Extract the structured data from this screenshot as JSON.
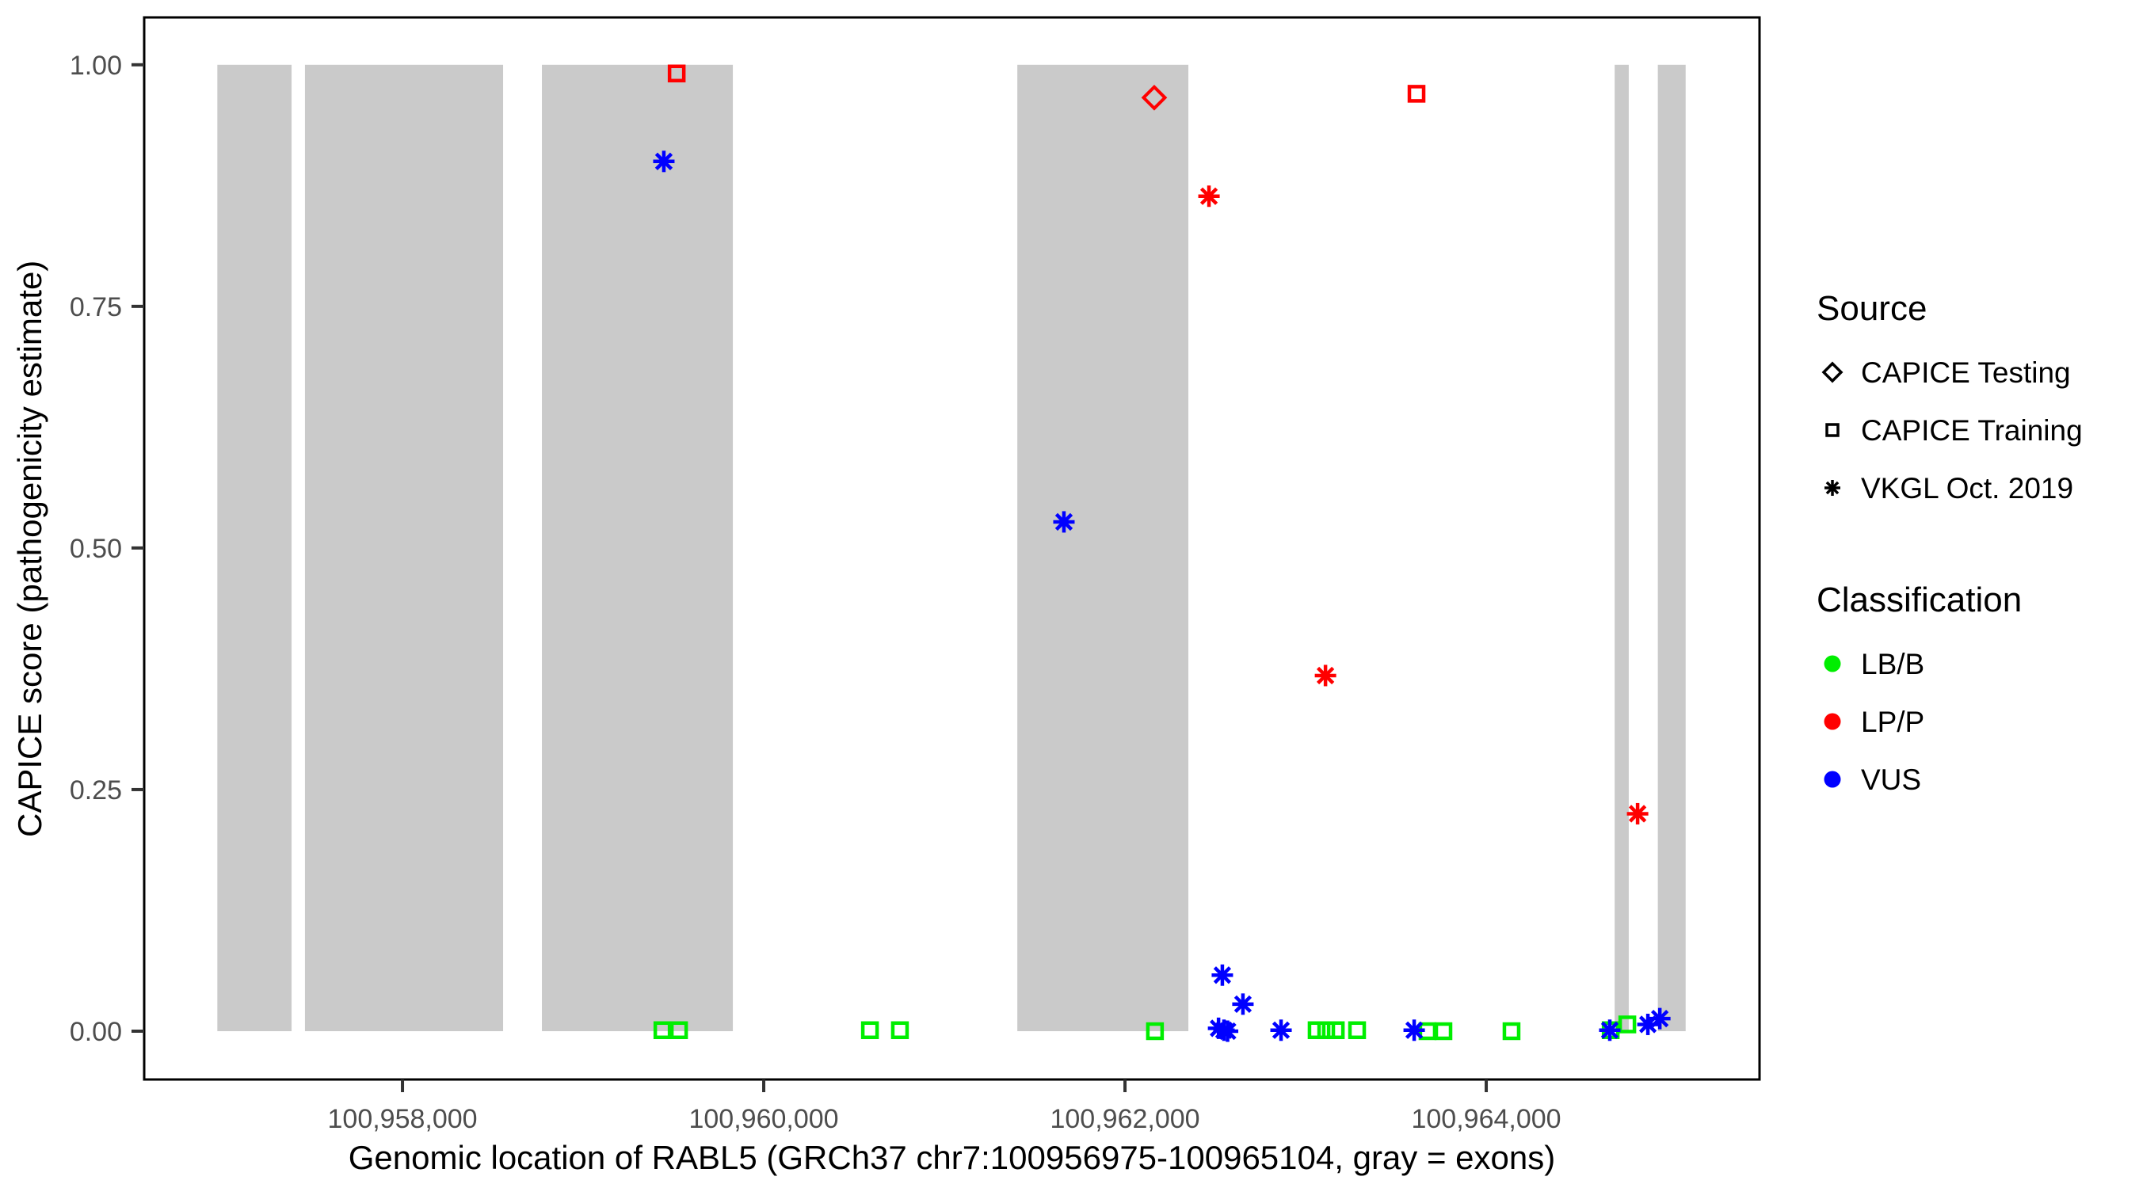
{
  "chart_data": {
    "type": "scatter",
    "title": "",
    "xlabel": "Genomic location of RABL5 (GRCh37 chr7:100956975-100965104, gray = exons)",
    "ylabel": "CAPICE score (pathogenicity estimate)",
    "x_domain": [
      100956570,
      100965513
    ],
    "y_domain": [
      -0.05,
      1.049
    ],
    "grid": false,
    "x_ticks": [
      {
        "value": 100958000,
        "label": "100,958,000"
      },
      {
        "value": 100960000,
        "label": "100,960,000"
      },
      {
        "value": 100962000,
        "label": "100,962,000"
      },
      {
        "value": 100964000,
        "label": "100,964,000"
      }
    ],
    "y_ticks": [
      {
        "value": 0.0,
        "label": "0.00"
      },
      {
        "value": 0.25,
        "label": "0.25"
      },
      {
        "value": 0.5,
        "label": "0.50"
      },
      {
        "value": 0.75,
        "label": "0.75"
      },
      {
        "value": 1.0,
        "label": "1.00"
      }
    ],
    "exons_note": "gray rectangles span CAPICE score 0 to 1",
    "exons": [
      [
        100956975,
        100957386
      ],
      [
        100957460,
        100958557
      ],
      [
        100958772,
        100959829
      ],
      [
        100961404,
        100962351
      ],
      [
        100964711,
        100964789
      ],
      [
        100964950,
        100965104
      ]
    ],
    "points": [
      {
        "pos": 100959439,
        "score": 0.001,
        "source": "CAPICE Training",
        "classification": "LB/B"
      },
      {
        "pos": 100959531,
        "score": 0.001,
        "source": "CAPICE Training",
        "classification": "LB/B"
      },
      {
        "pos": 100960588,
        "score": 0.001,
        "source": "CAPICE Training",
        "classification": "LB/B"
      },
      {
        "pos": 100960754,
        "score": 0.001,
        "source": "CAPICE Training",
        "classification": "LB/B"
      },
      {
        "pos": 100962166,
        "score": 0.0,
        "source": "CAPICE Training",
        "classification": "LB/B"
      },
      {
        "pos": 100963061,
        "score": 0.001,
        "source": "CAPICE Training",
        "classification": "LB/B"
      },
      {
        "pos": 100963114,
        "score": 0.001,
        "source": "CAPICE Training",
        "classification": "LB/B"
      },
      {
        "pos": 100963167,
        "score": 0.001,
        "source": "CAPICE Training",
        "classification": "LB/B"
      },
      {
        "pos": 100963285,
        "score": 0.001,
        "source": "CAPICE Training",
        "classification": "LB/B"
      },
      {
        "pos": 100963675,
        "score": 0.0,
        "source": "CAPICE Training",
        "classification": "LB/B"
      },
      {
        "pos": 100963763,
        "score": 0.0,
        "source": "CAPICE Training",
        "classification": "LB/B"
      },
      {
        "pos": 100964140,
        "score": 0.0,
        "source": "CAPICE Training",
        "classification": "LB/B"
      },
      {
        "pos": 100964689,
        "score": 0.001,
        "source": "CAPICE Training",
        "classification": "LB/B"
      },
      {
        "pos": 100964781,
        "score": 0.007,
        "source": "CAPICE Training",
        "classification": "LB/B"
      },
      {
        "pos": 100959518,
        "score": 0.991,
        "source": "CAPICE Training",
        "classification": "LP/P"
      },
      {
        "pos": 100963614,
        "score": 0.97,
        "source": "CAPICE Training",
        "classification": "LP/P"
      },
      {
        "pos": 100962162,
        "score": 0.966,
        "source": "CAPICE Testing",
        "classification": "LP/P"
      },
      {
        "pos": 100959447,
        "score": 0.9,
        "source": "VKGL Oct. 2019",
        "classification": "VUS"
      },
      {
        "pos": 100961662,
        "score": 0.527,
        "source": "VKGL Oct. 2019",
        "classification": "VUS"
      },
      {
        "pos": 100962465,
        "score": 0.864,
        "source": "VKGL Oct. 2019",
        "classification": "LP/P"
      },
      {
        "pos": 100963110,
        "score": 0.368,
        "source": "VKGL Oct. 2019",
        "classification": "LP/P"
      },
      {
        "pos": 100964838,
        "score": 0.225,
        "source": "VKGL Oct. 2019",
        "classification": "LP/P"
      },
      {
        "pos": 100962539,
        "score": 0.058,
        "source": "VKGL Oct. 2019",
        "classification": "VUS"
      },
      {
        "pos": 100962653,
        "score": 0.028,
        "source": "VKGL Oct. 2019",
        "classification": "VUS"
      },
      {
        "pos": 100962518,
        "score": 0.003,
        "source": "VKGL Oct. 2019",
        "classification": "VUS"
      },
      {
        "pos": 100962548,
        "score": 0.001,
        "source": "VKGL Oct. 2019",
        "classification": "VUS"
      },
      {
        "pos": 100962568,
        "score": 0.0,
        "source": "VKGL Oct. 2019",
        "classification": "VUS"
      },
      {
        "pos": 100962864,
        "score": 0.001,
        "source": "VKGL Oct. 2019",
        "classification": "VUS"
      },
      {
        "pos": 100963601,
        "score": 0.001,
        "source": "VKGL Oct. 2019",
        "classification": "VUS"
      },
      {
        "pos": 100964684,
        "score": 0.001,
        "source": "VKGL Oct. 2019",
        "classification": "VUS"
      },
      {
        "pos": 100964895,
        "score": 0.007,
        "source": "VKGL Oct. 2019",
        "classification": "VUS"
      },
      {
        "pos": 100964961,
        "score": 0.013,
        "source": "VKGL Oct. 2019",
        "classification": "VUS"
      }
    ],
    "legend": {
      "source": {
        "title": "Source",
        "items": [
          {
            "label": "CAPICE Testing",
            "shape": "diamond"
          },
          {
            "label": "CAPICE Training",
            "shape": "square"
          },
          {
            "label": "VKGL Oct. 2019",
            "shape": "asterisk"
          }
        ]
      },
      "classification": {
        "title": "Classification",
        "items": [
          {
            "label": "LB/B"
          },
          {
            "label": "LP/P"
          },
          {
            "label": "VUS"
          }
        ]
      }
    }
  },
  "colors": {
    "class_colors": {
      "LB/B": "#00EE00",
      "LP/P": "#FF0000",
      "VUS": "#0000FF"
    },
    "exon": "#CACACA",
    "panel_border": "#000000",
    "tick_mark": "#333333",
    "tick_label": "#4D4D4D",
    "legend_symbol": "#000000",
    "background": "#FFFFFF"
  }
}
